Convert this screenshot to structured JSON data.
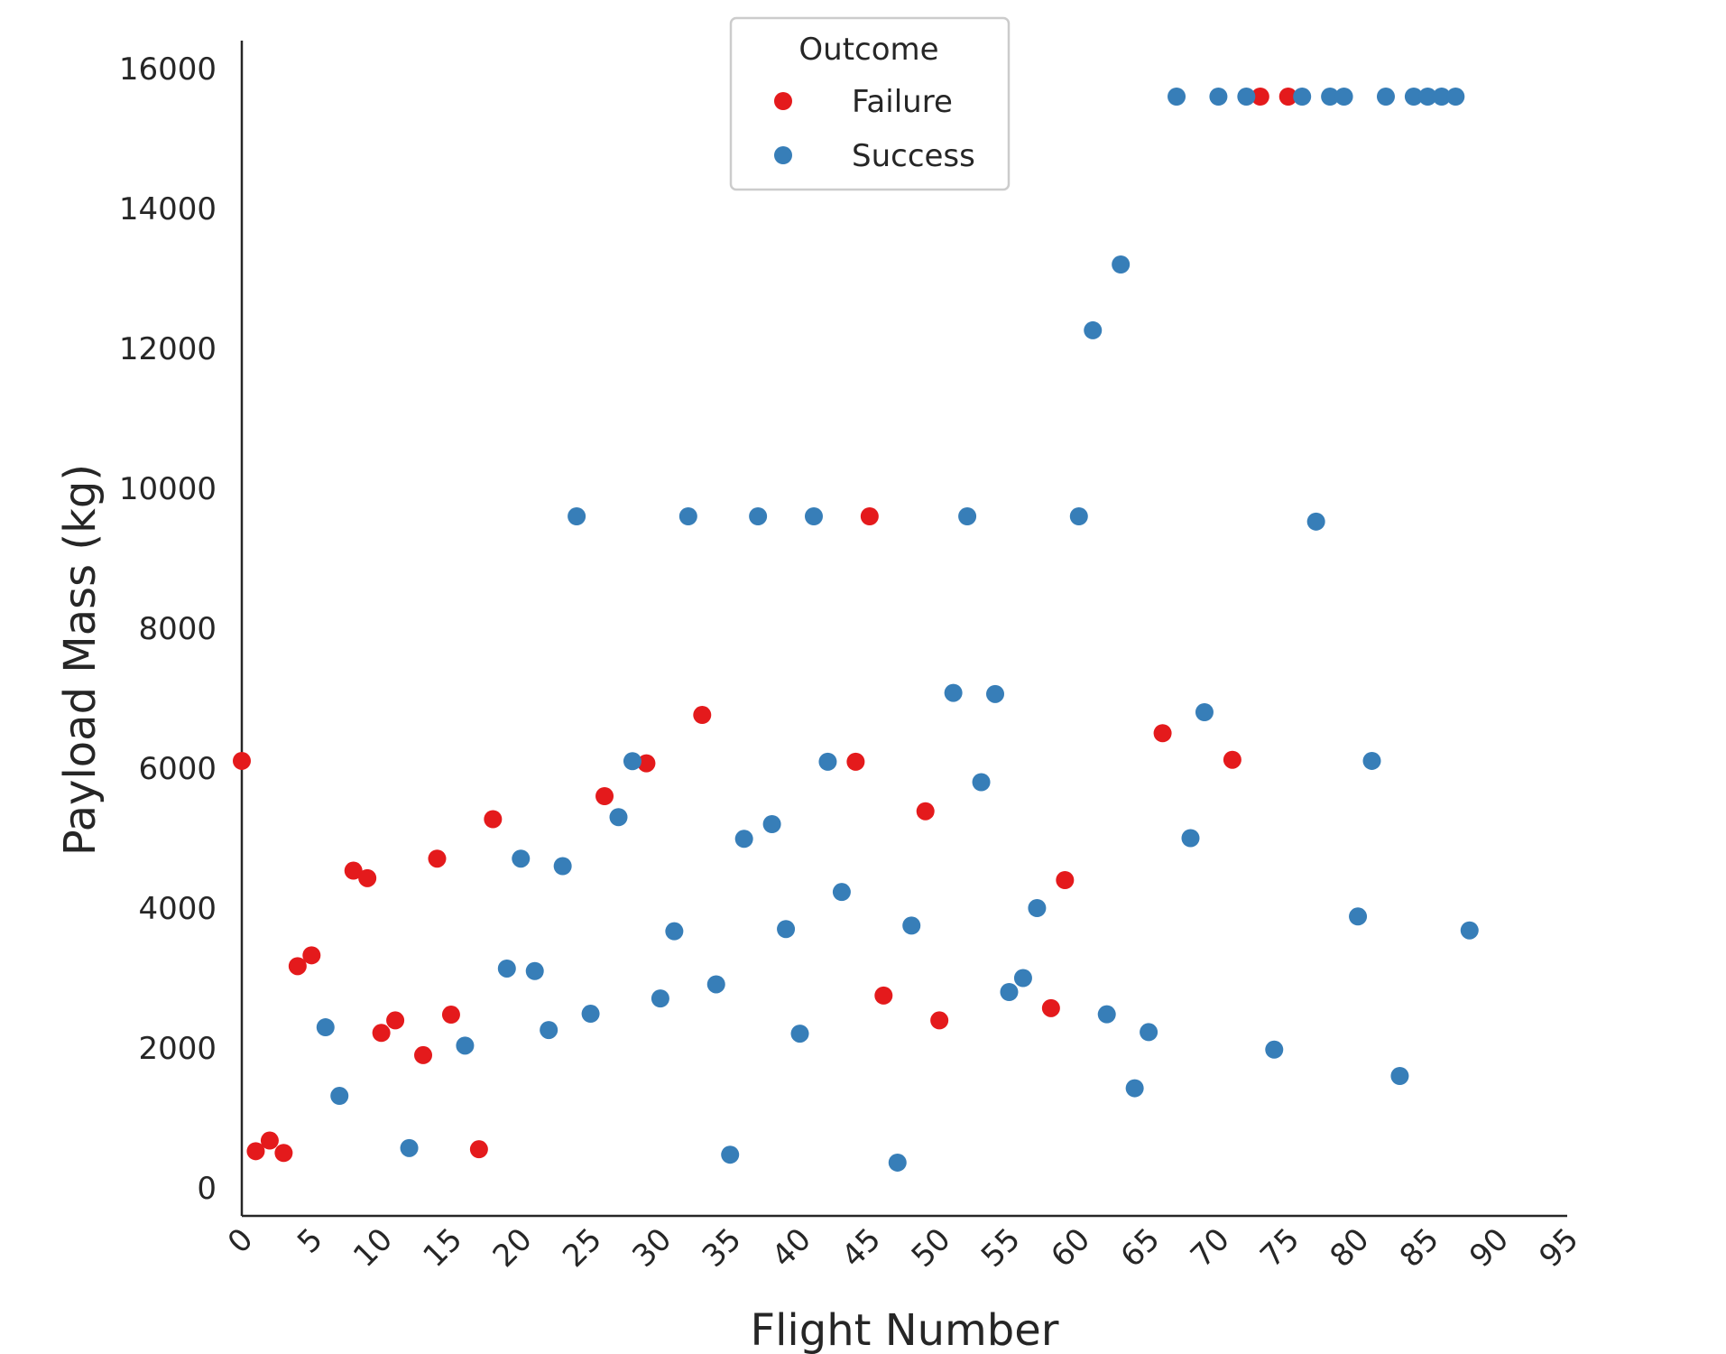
{
  "chart_data": {
    "type": "scatter",
    "xlabel": "Flight Number",
    "ylabel": "Payload Mass (kg)",
    "xlim": [
      0,
      95
    ],
    "ylim": [
      -400,
      16400
    ],
    "xticks": [
      0,
      5,
      10,
      15,
      20,
      25,
      30,
      35,
      40,
      45,
      50,
      55,
      60,
      65,
      70,
      75,
      80,
      85,
      90,
      95
    ],
    "yticks": [
      0,
      2000,
      4000,
      6000,
      8000,
      10000,
      12000,
      14000,
      16000
    ],
    "grid": false,
    "legend": {
      "title": "Outcome",
      "placement": "top-center",
      "entries": [
        "Failure",
        "Success"
      ]
    },
    "series": [
      {
        "name": "Failure",
        "color": "#e41a1c",
        "points": [
          [
            0,
            6104
          ],
          [
            1,
            525
          ],
          [
            2,
            677
          ],
          [
            3,
            500
          ],
          [
            4,
            3170
          ],
          [
            5,
            3325
          ],
          [
            8,
            4535
          ],
          [
            9,
            4428
          ],
          [
            10,
            2216
          ],
          [
            11,
            2395
          ],
          [
            13,
            1898
          ],
          [
            14,
            4707
          ],
          [
            15,
            2477
          ],
          [
            17,
            553
          ],
          [
            18,
            5271
          ],
          [
            26,
            5600
          ],
          [
            29,
            6070
          ],
          [
            33,
            6761
          ],
          [
            44,
            6092
          ],
          [
            45,
            9600
          ],
          [
            46,
            2750
          ],
          [
            49,
            5384
          ],
          [
            50,
            2395
          ],
          [
            58,
            2570
          ],
          [
            59,
            4400
          ],
          [
            66,
            6500
          ],
          [
            71,
            6120
          ],
          [
            73,
            15600
          ],
          [
            75,
            15600
          ]
        ]
      },
      {
        "name": "Success",
        "color": "#377eb8",
        "points": [
          [
            6,
            2296
          ],
          [
            7,
            1316
          ],
          [
            12,
            570
          ],
          [
            16,
            2034
          ],
          [
            19,
            3136
          ],
          [
            20,
            4707
          ],
          [
            21,
            3100
          ],
          [
            22,
            2257
          ],
          [
            23,
            4600
          ],
          [
            24,
            9600
          ],
          [
            25,
            2490
          ],
          [
            27,
            5300
          ],
          [
            28,
            6100
          ],
          [
            30,
            2708
          ],
          [
            31,
            3669
          ],
          [
            32,
            9600
          ],
          [
            34,
            2910
          ],
          [
            35,
            475
          ],
          [
            36,
            4990
          ],
          [
            37,
            9600
          ],
          [
            38,
            5200
          ],
          [
            39,
            3700
          ],
          [
            40,
            2205
          ],
          [
            41,
            9600
          ],
          [
            42,
            6092
          ],
          [
            43,
            4230
          ],
          [
            47,
            362
          ],
          [
            48,
            3750
          ],
          [
            51,
            7076
          ],
          [
            52,
            9600
          ],
          [
            53,
            5800
          ],
          [
            54,
            7060
          ],
          [
            55,
            2800
          ],
          [
            56,
            3000
          ],
          [
            57,
            4000
          ],
          [
            60,
            9600
          ],
          [
            61,
            12259
          ],
          [
            62,
            2482
          ],
          [
            63,
            13200
          ],
          [
            64,
            1425
          ],
          [
            65,
            2227
          ],
          [
            67,
            15600
          ],
          [
            68,
            5000
          ],
          [
            69,
            6800
          ],
          [
            70,
            15600
          ],
          [
            72,
            15600
          ],
          [
            74,
            1977
          ],
          [
            76,
            15600
          ],
          [
            77,
            9525
          ],
          [
            78,
            15600
          ],
          [
            79,
            15600
          ],
          [
            80,
            3880
          ],
          [
            81,
            6104
          ],
          [
            82,
            15600
          ],
          [
            83,
            1600
          ],
          [
            84,
            15600
          ],
          [
            85,
            15600
          ],
          [
            86,
            15600
          ],
          [
            87,
            15600
          ],
          [
            88,
            3681
          ]
        ]
      }
    ]
  }
}
